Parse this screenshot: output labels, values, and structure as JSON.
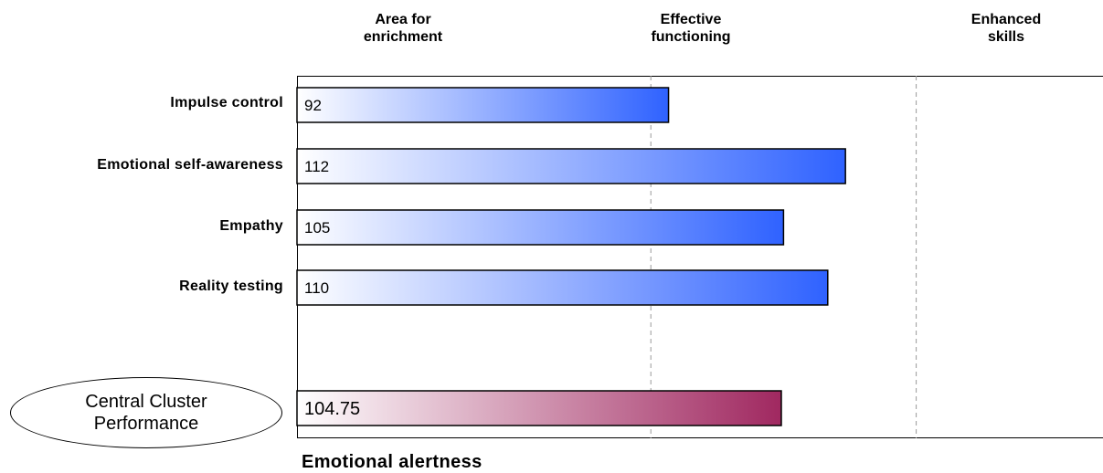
{
  "zones": [
    {
      "label": "Area for\nenrichment"
    },
    {
      "label": "Effective\nfunctioning"
    },
    {
      "label": "Enhanced\nskills"
    }
  ],
  "cluster": {
    "label_line1": "Central Cluster",
    "label_line2": "Performance",
    "value": 104.75,
    "value_label": "104.75",
    "gradient": [
      "#ffffff",
      "#a02860"
    ]
  },
  "footer": {
    "title": "Emotional alertness"
  },
  "chart_data": {
    "type": "bar",
    "orientation": "horizontal",
    "categories": [
      "Impulse control",
      "Emotional self-awareness",
      "Empathy",
      "Reality testing"
    ],
    "values": [
      92,
      112,
      105,
      110
    ],
    "value_labels": [
      "92",
      "112",
      "105",
      "110"
    ],
    "xlim": [
      50,
      150
    ],
    "zone_boundaries": [
      90,
      120
    ],
    "grid": "dashed vertical at zone boundaries",
    "bar_gradient": [
      "#ffffff",
      "#2f62ff"
    ]
  }
}
